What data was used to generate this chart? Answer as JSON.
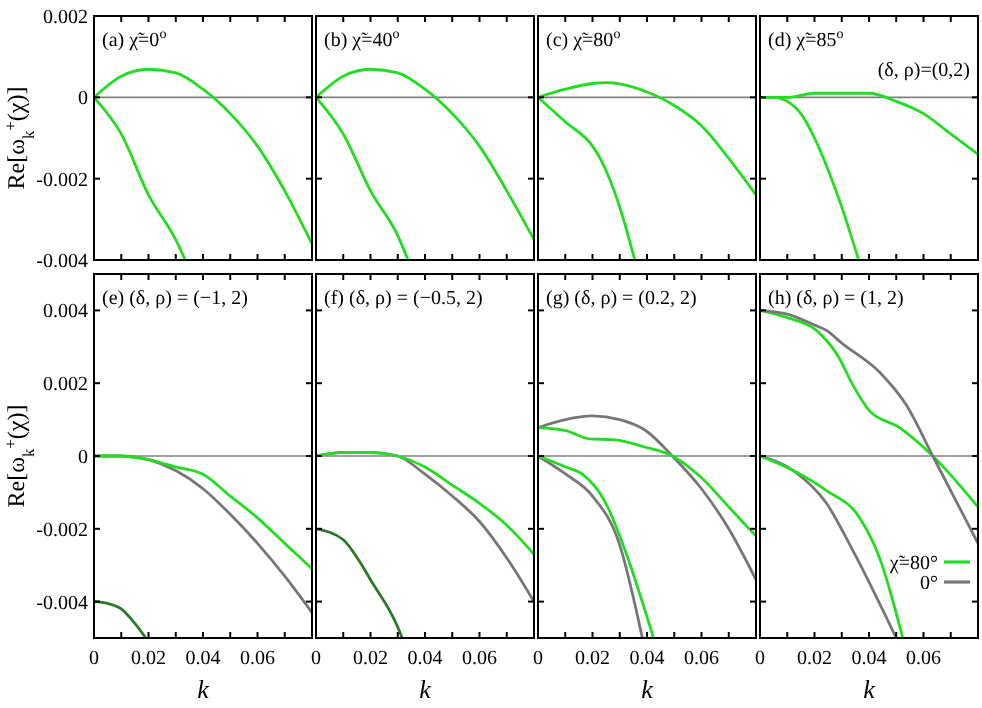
{
  "chart_data": [
    {
      "type": "line",
      "title": "(a) χ̃=0$^{o}$",
      "ylabel": "Re[ω$_{k}$$^{+}$(χ)]",
      "xlim": [
        0,
        0.08
      ],
      "ylim": [
        -0.004,
        0.002
      ],
      "xticks": [
        0,
        {
          "value": 0.01,
          "label": null
        },
        0.02,
        {
          "value": 0.03,
          "label": null
        },
        0.04,
        {
          "value": 0.05,
          "label": null
        },
        0.06,
        {
          "value": 0.07,
          "label": null
        }
      ],
      "yticks": [
        -0.004,
        -0.002,
        0,
        0.002
      ],
      "tick_labels": "y",
      "ref_lines": [
        {
          "axis": "y",
          "value": 0,
          "color": "#808080"
        }
      ],
      "series": [
        {
          "color": "#22dd22",
          "x": [
            0,
            0.01,
            0.02,
            0.03,
            0.04,
            0.05,
            0.06,
            0.07,
            0.08
          ],
          "values": [
            0,
            0.00052,
            0.00069,
            0.0006,
            0.0002,
            -0.0004,
            -0.0012,
            -0.0023,
            -0.0036
          ]
        },
        {
          "color": "#22dd22",
          "x": [
            0,
            0.01,
            0.02,
            0.03,
            0.0335
          ],
          "values": [
            0,
            -0.0009,
            -0.0024,
            -0.0035,
            -0.004
          ]
        }
      ]
    },
    {
      "type": "line",
      "title": "(b) χ̃=40$^{o}$",
      "xlim": [
        0,
        0.08
      ],
      "ylim": [
        -0.004,
        0.002
      ],
      "xticks": [
        0,
        {
          "value": 0.01,
          "label": null
        },
        0.02,
        {
          "value": 0.03,
          "label": null
        },
        0.04,
        {
          "value": 0.05,
          "label": null
        },
        0.06,
        {
          "value": 0.07,
          "label": null
        }
      ],
      "yticks": [
        -0.004,
        -0.002,
        0,
        0.002
      ],
      "tick_labels": false,
      "ref_lines": [
        {
          "axis": "y",
          "value": 0,
          "color": "#808080"
        }
      ],
      "series": [
        {
          "color": "#22dd22",
          "x": [
            0,
            0.01,
            0.02,
            0.03,
            0.04,
            0.05,
            0.06,
            0.07,
            0.08
          ],
          "values": [
            0,
            0.00052,
            0.00069,
            0.0006,
            0.0002,
            -0.0004,
            -0.0012,
            -0.0023,
            -0.0035
          ]
        },
        {
          "color": "#22dd22",
          "x": [
            0,
            0.01,
            0.02,
            0.03,
            0.0338
          ],
          "values": [
            0,
            -0.0009,
            -0.0023,
            -0.0034,
            -0.004
          ]
        }
      ]
    },
    {
      "type": "line",
      "title": "(c) χ̃=80$^{o}$",
      "xlim": [
        0,
        0.08
      ],
      "ylim": [
        -0.004,
        0.002
      ],
      "xticks": [
        0,
        {
          "value": 0.01,
          "label": null
        },
        0.02,
        {
          "value": 0.03,
          "label": null
        },
        0.04,
        {
          "value": 0.05,
          "label": null
        },
        0.06,
        {
          "value": 0.07,
          "label": null
        }
      ],
      "yticks": [
        -0.004,
        -0.002,
        0,
        0.002
      ],
      "tick_labels": false,
      "ref_lines": [
        {
          "axis": "y",
          "value": 0,
          "color": "#808080"
        }
      ],
      "series": [
        {
          "color": "#22dd22",
          "x": [
            0,
            0.01,
            0.02,
            0.025,
            0.03,
            0.04,
            0.05,
            0.06,
            0.07,
            0.08
          ],
          "values": [
            0,
            0.0002,
            0.00034,
            0.00036,
            0.00033,
            0.00013,
            -0.0002,
            -0.0007,
            -0.0015,
            -0.0024
          ]
        },
        {
          "color": "#22dd22",
          "x": [
            0,
            0.01,
            0.02,
            0.0228,
            0.03,
            0.0355
          ],
          "values": [
            0,
            -0.0006,
            -0.0012,
            -0.0015,
            -0.0027,
            -0.004
          ]
        }
      ]
    },
    {
      "type": "line",
      "title": "(d) χ̃=85$^{o}$",
      "annotations": [
        "(δ, ρ)=(0,2)"
      ],
      "xlim": [
        0,
        0.08
      ],
      "ylim": [
        -0.004,
        0.002
      ],
      "xticks": [
        0,
        {
          "value": 0.01,
          "label": null
        },
        0.02,
        {
          "value": 0.03,
          "label": null
        },
        0.04,
        {
          "value": 0.05,
          "label": null
        },
        0.06,
        {
          "value": 0.07,
          "label": null
        }
      ],
      "yticks": [
        -0.004,
        -0.002,
        0,
        0.002
      ],
      "tick_labels": false,
      "ref_lines": [
        {
          "axis": "y",
          "value": 0,
          "color": "#808080"
        }
      ],
      "series": [
        {
          "color": "#22dd22",
          "x": [
            0,
            0.01,
            0.02,
            0.03,
            0.04,
            0.05,
            0.06,
            0.07,
            0.08
          ],
          "values": [
            0,
            0,
            0.0001,
            0.0001,
            0.0001,
            -0.0001,
            -0.0004,
            -0.0009,
            -0.0014
          ]
        },
        {
          "color": "#22dd22",
          "x": [
            0,
            0.005,
            0.01,
            0.015,
            0.02,
            0.0245,
            0.03,
            0.0362
          ],
          "values": [
            0,
            0,
            -0.0001,
            -0.0004,
            -0.001,
            -0.0017,
            -0.0027,
            -0.004
          ]
        }
      ]
    },
    {
      "type": "line",
      "title": "(e) (δ, ρ) = (−1, 2)",
      "xlabel": "k",
      "ylabel": "Re[ω$_{k}$$^{+}$(χ)]",
      "xlim": [
        0,
        0.08
      ],
      "ylim": [
        -0.005,
        0.005
      ],
      "xticks": [
        0,
        {
          "value": 0.01,
          "label": null
        },
        0.02,
        {
          "value": 0.03,
          "label": null
        },
        0.04,
        {
          "value": 0.05,
          "label": null
        },
        0.06,
        {
          "value": 0.07,
          "label": null
        }
      ],
      "yticks": [
        -0.004,
        -0.002,
        0,
        0.002,
        0.004
      ],
      "ref_lines": [
        {
          "axis": "y",
          "value": 0,
          "color": "#808080"
        }
      ],
      "series": [
        {
          "color": "#777777",
          "x": [
            0,
            0.01,
            0.02,
            0.03,
            0.04,
            0.05,
            0.06,
            0.07,
            0.08
          ],
          "values": [
            0,
            0,
            -0.0001,
            -0.0004,
            -0.0009,
            -0.0016,
            -0.0024,
            -0.0033,
            -0.0043
          ]
        },
        {
          "color": "#22dd22",
          "x": [
            0,
            0.01,
            0.02,
            0.03,
            0.04,
            0.05,
            0.06,
            0.07,
            0.08
          ],
          "values": [
            0,
            0,
            -0.0001,
            -0.0003,
            -0.0005,
            -0.0011,
            -0.0017,
            -0.0024,
            -0.0031
          ]
        },
        {
          "color": "#2a7a2a",
          "x": [
            0,
            0.005,
            0.01,
            0.015,
            0.019
          ],
          "values": [
            -0.004,
            -0.00405,
            -0.0042,
            -0.0046,
            -0.005
          ]
        }
      ]
    },
    {
      "type": "line",
      "title": "(f) (δ, ρ) = (−0.5, 2)",
      "xlabel": "k",
      "xlim": [
        0,
        0.08
      ],
      "ylim": [
        -0.005,
        0.005
      ],
      "xticks": [
        0,
        {
          "value": 0.01,
          "label": null
        },
        0.02,
        {
          "value": 0.03,
          "label": null
        },
        0.04,
        {
          "value": 0.05,
          "label": null
        },
        0.06,
        {
          "value": 0.07,
          "label": null
        }
      ],
      "yticks": [
        -0.004,
        -0.002,
        0,
        0.002,
        0.004
      ],
      "tick_labels": "x",
      "ref_lines": [
        {
          "axis": "y",
          "value": 0,
          "color": "#808080"
        }
      ],
      "series": [
        {
          "color": "#777777",
          "x": [
            0,
            0.01,
            0.02,
            0.03,
            0.04,
            0.05,
            0.06,
            0.07,
            0.08
          ],
          "values": [
            0,
            0.0001,
            0.0001,
            0,
            -0.0005,
            -0.0011,
            -0.0018,
            -0.0028,
            -0.004
          ]
        },
        {
          "color": "#22dd22",
          "x": [
            0,
            0.01,
            0.02,
            0.03,
            0.04,
            0.05,
            0.06,
            0.07,
            0.08
          ],
          "values": [
            0,
            0.0001,
            0.0001,
            0,
            -0.0003,
            -0.0008,
            -0.0013,
            -0.0019,
            -0.0027
          ]
        },
        {
          "color": "#2a7a2a",
          "x": [
            0,
            0.01,
            0.016,
            0.02,
            0.03,
            0.0316
          ],
          "values": [
            -0.002,
            -0.0023,
            -0.0029,
            -0.0034,
            -0.0047,
            -0.005
          ]
        }
      ]
    },
    {
      "type": "line",
      "title": "(g) (δ, ρ) = (0.2, 2)",
      "xlabel": "k",
      "xlim": [
        0,
        0.08
      ],
      "ylim": [
        -0.005,
        0.005
      ],
      "xticks": [
        0,
        {
          "value": 0.01,
          "label": null
        },
        0.02,
        {
          "value": 0.03,
          "label": null
        },
        0.04,
        {
          "value": 0.05,
          "label": null
        },
        0.06,
        {
          "value": 0.07,
          "label": null
        }
      ],
      "yticks": [
        -0.004,
        -0.002,
        0,
        0.002,
        0.004
      ],
      "tick_labels": "x",
      "ref_lines": [
        {
          "axis": "y",
          "value": 0,
          "color": "#808080"
        }
      ],
      "series": [
        {
          "color": "#777777",
          "x": [
            0,
            0.01,
            0.02,
            0.03,
            0.0395,
            0.0493,
            0.06,
            0.07,
            0.08
          ],
          "values": [
            0.00078,
            0.001,
            0.0011,
            0.001,
            0.0007,
            0,
            -0.0009,
            -0.002,
            -0.0034
          ]
        },
        {
          "color": "#22dd22",
          "x": [
            0,
            0.0102,
            0.0188,
            0.0273,
            0.0395,
            0.0493,
            0.06,
            0.07,
            0.08
          ],
          "values": [
            0.00078,
            0.0007,
            0.00047,
            0.00045,
            0.00024,
            0,
            -0.0006,
            -0.0014,
            -0.0022
          ]
        },
        {
          "color": "#777777",
          "x": [
            0,
            0.0102,
            0.02,
            0.0298,
            0.0383
          ],
          "values": [
            0,
            -0.0005,
            -0.0011,
            -0.0024,
            -0.005
          ]
        },
        {
          "color": "#22dd22",
          "x": [
            0,
            0.0102,
            0.0163,
            0.0249,
            0.032,
            0.0424
          ],
          "values": [
            0,
            -0.0003,
            -0.0005,
            -0.0013,
            -0.0026,
            -0.005
          ]
        }
      ]
    },
    {
      "type": "line",
      "title": "(h) (δ, ρ) = (1, 2)",
      "xlabel": "k",
      "xlim": [
        0,
        0.08
      ],
      "ylim": [
        -0.005,
        0.005
      ],
      "xticks": [
        0,
        {
          "value": 0.01,
          "label": null
        },
        0.02,
        {
          "value": 0.03,
          "label": null
        },
        0.04,
        {
          "value": 0.05,
          "label": null
        },
        0.06,
        {
          "value": 0.07,
          "label": null
        }
      ],
      "yticks": [
        -0.004,
        -0.002,
        0,
        0.002,
        0.004
      ],
      "tick_labels": "x",
      "legend": "bottom right",
      "ref_lines": [
        {
          "axis": "y",
          "value": 0,
          "color": "#808080"
        }
      ],
      "series": [
        {
          "name": "χ̃=80°",
          "color": "#22dd22",
          "x": [
            0,
            0.01,
            0.0207,
            0.029,
            0.034,
            0.0402,
            0.0512,
            0.0634,
            0.08
          ],
          "values": [
            0.004,
            0.0038,
            0.00345,
            0.0027,
            0.00196,
            0.00124,
            0.00078,
            0,
            -0.0014
          ]
        },
        {
          "name": "0°",
          "color": "#777777",
          "x": [
            0,
            0.01,
            0.02,
            0.0244,
            0.03,
            0.0439,
            0.0537,
            0.0634,
            0.08
          ],
          "values": [
            0.004,
            0.0039,
            0.0036,
            0.00345,
            0.0031,
            0.0023,
            0.0014,
            0,
            -0.0024
          ]
        },
        {
          "color": "#777777",
          "x": [
            0,
            0.0122,
            0.0244,
            0.0341,
            0.05
          ],
          "values": [
            0,
            -0.0004,
            -0.0013,
            -0.0026,
            -0.005
          ]
        },
        {
          "color": "#22dd22",
          "x": [
            0,
            0.0122,
            0.0244,
            0.0366,
            0.0439,
            0.0524
          ],
          "values": [
            0,
            -0.0004,
            -0.00095,
            -0.0017,
            -0.0028,
            -0.005
          ]
        }
      ]
    }
  ]
}
